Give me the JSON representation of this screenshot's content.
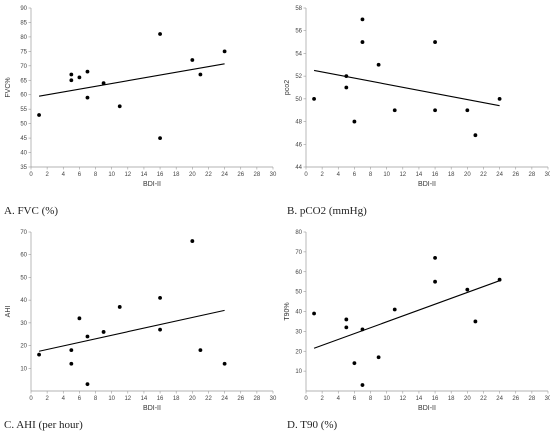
{
  "chart_data": [
    {
      "type": "scatter",
      "caption": "A. FVC (%)",
      "xlabel": "BDI-II",
      "ylabel": "FVC%",
      "xlim": [
        0,
        30
      ],
      "ylim": [
        35,
        90
      ],
      "xticks": [
        0,
        2,
        4,
        6,
        8,
        10,
        12,
        14,
        16,
        18,
        20,
        22,
        24,
        26,
        28,
        30
      ],
      "yticks": [
        35,
        40,
        45,
        50,
        55,
        60,
        65,
        70,
        75,
        80,
        85,
        90
      ],
      "points": [
        [
          1,
          53
        ],
        [
          5,
          65
        ],
        [
          5,
          67
        ],
        [
          6,
          66
        ],
        [
          7,
          68
        ],
        [
          7,
          59
        ],
        [
          9,
          64
        ],
        [
          11,
          56
        ],
        [
          16,
          81
        ],
        [
          16,
          45
        ],
        [
          20,
          72
        ],
        [
          21,
          67
        ],
        [
          24,
          75
        ]
      ],
      "trendline": [
        [
          1,
          59.5
        ],
        [
          24,
          70.7
        ]
      ],
      "grid": false,
      "color": "#000000"
    },
    {
      "type": "scatter",
      "caption": "B. pCO2 (mmHg)",
      "xlabel": "BDI-II",
      "ylabel": "pco2",
      "xlim": [
        0,
        30
      ],
      "ylim": [
        44,
        58
      ],
      "xticks": [
        0,
        2,
        4,
        6,
        8,
        10,
        12,
        14,
        16,
        18,
        20,
        22,
        24,
        26,
        28,
        30
      ],
      "yticks": [
        44,
        46,
        48,
        50,
        52,
        54,
        56,
        58
      ],
      "points": [
        [
          1,
          50
        ],
        [
          5,
          52
        ],
        [
          5,
          51
        ],
        [
          6,
          48
        ],
        [
          7,
          57
        ],
        [
          7,
          55
        ],
        [
          9,
          53
        ],
        [
          11,
          49
        ],
        [
          16,
          55
        ],
        [
          16,
          49
        ],
        [
          20,
          49
        ],
        [
          21,
          46.8
        ],
        [
          24,
          50
        ]
      ],
      "trendline": [
        [
          1,
          52.5
        ],
        [
          24,
          49.4
        ]
      ],
      "grid": false,
      "color": "#000000"
    },
    {
      "type": "scatter",
      "caption": "C. AHI (per hour)",
      "xlabel": "BDI-II",
      "ylabel": "AHI",
      "xlim": [
        0,
        30
      ],
      "ylim": [
        0,
        70
      ],
      "xticks": [
        0,
        2,
        4,
        6,
        8,
        10,
        12,
        14,
        16,
        18,
        20,
        22,
        24,
        26,
        28,
        30
      ],
      "yticks": [
        10,
        20,
        30,
        40,
        50,
        60,
        70
      ],
      "points": [
        [
          1,
          16
        ],
        [
          5,
          18
        ],
        [
          5,
          12
        ],
        [
          6,
          32
        ],
        [
          7,
          24
        ],
        [
          7,
          3
        ],
        [
          9,
          26
        ],
        [
          11,
          37
        ],
        [
          16,
          41
        ],
        [
          16,
          27
        ],
        [
          20,
          66
        ],
        [
          21,
          18
        ],
        [
          24,
          12
        ]
      ],
      "trendline": [
        [
          1,
          17.5
        ],
        [
          24,
          35.5
        ]
      ],
      "grid": false,
      "color": "#000000"
    },
    {
      "type": "scatter",
      "caption": "D. T90 (%)",
      "xlabel": "BDI-II",
      "ylabel": "T90%",
      "xlim": [
        0,
        30
      ],
      "ylim": [
        0,
        80
      ],
      "xticks": [
        0,
        2,
        4,
        6,
        8,
        10,
        12,
        14,
        16,
        18,
        20,
        22,
        24,
        26,
        28,
        30
      ],
      "yticks": [
        10,
        20,
        30,
        40,
        50,
        60,
        70,
        80
      ],
      "points": [
        [
          1,
          39
        ],
        [
          5,
          36
        ],
        [
          5,
          32
        ],
        [
          6,
          14
        ],
        [
          7,
          31
        ],
        [
          7,
          3
        ],
        [
          9,
          17
        ],
        [
          11,
          41
        ],
        [
          16,
          67
        ],
        [
          16,
          55
        ],
        [
          20,
          51
        ],
        [
          21,
          35
        ],
        [
          24,
          56
        ]
      ],
      "trendline": [
        [
          1,
          21.5
        ],
        [
          24,
          55.5
        ]
      ],
      "grid": false,
      "color": "#000000"
    }
  ]
}
